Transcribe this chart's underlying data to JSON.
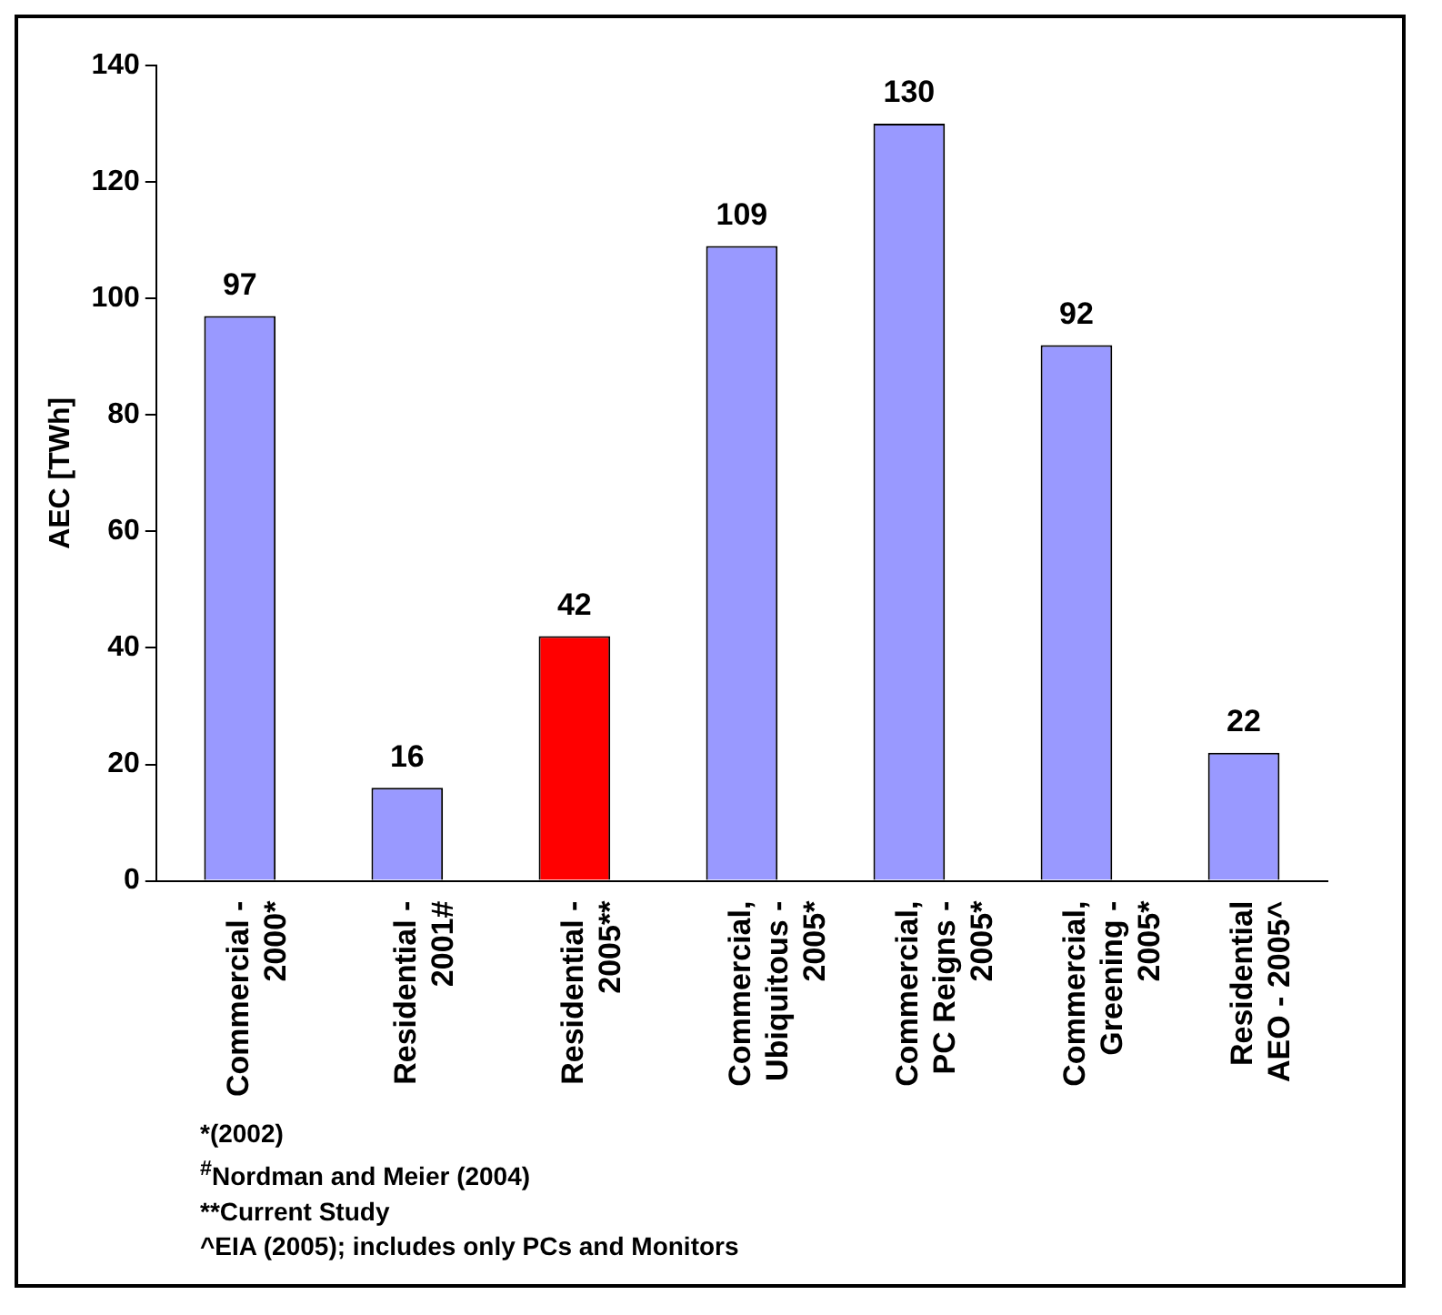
{
  "chart_data": {
    "type": "bar",
    "ylabel": "AEC [TWh]",
    "categories": [
      "Commercial - 2000*",
      "Residential - 2001#",
      "Residential - 2005**",
      "Commercial, Ubiquitous - 2005*",
      "Commercial, PC Reigns - 2005*",
      "Commercial, Greening - 2005*",
      "Residential AEO - 2005^"
    ],
    "values": [
      97,
      16,
      42,
      109,
      130,
      92,
      22
    ],
    "colors": [
      "#9999ff",
      "#9999ff",
      "#ff0000",
      "#9999ff",
      "#9999ff",
      "#9999ff",
      "#9999ff"
    ],
    "ylim": [
      0,
      140
    ],
    "yticks": [
      0,
      20,
      40,
      60,
      80,
      100,
      120,
      140
    ],
    "grid": false,
    "data_labels": true,
    "legend": false,
    "annotations": [
      "*(2002)",
      "$^{#}$Nordman and Meier (2004)",
      "**Current Study",
      "^EIA (2005); includes only PCs and Monitors"
    ]
  }
}
